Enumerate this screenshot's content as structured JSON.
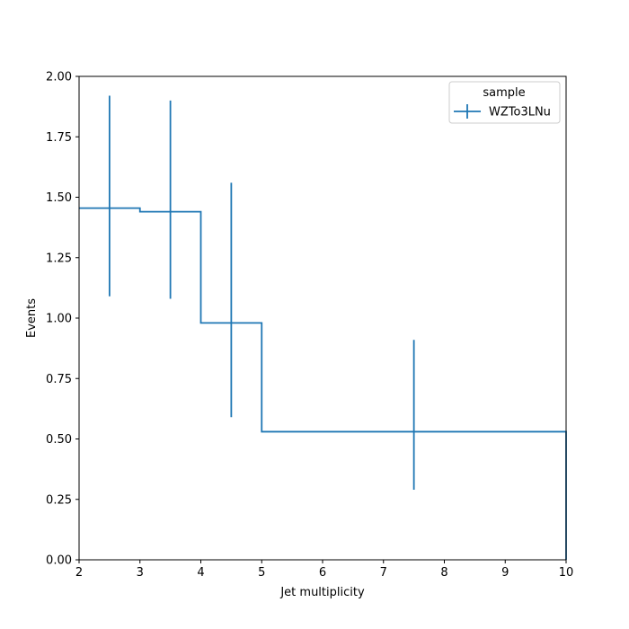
{
  "chart_data": {
    "type": "histogram-step",
    "xlabel": "Jet multiplicity",
    "ylabel": "Events",
    "xlim": [
      2,
      10
    ],
    "ylim": [
      0,
      2.0
    ],
    "xticks": [
      "2",
      "3",
      "4",
      "5",
      "6",
      "7",
      "8",
      "9",
      "10"
    ],
    "yticks": [
      "0.00",
      "0.25",
      "0.50",
      "0.75",
      "1.00",
      "1.25",
      "1.50",
      "1.75",
      "2.00"
    ],
    "grid": false,
    "legend": {
      "title": "sample",
      "placement": "top-right",
      "entries": [
        "WZTo3LNu"
      ]
    },
    "series": [
      {
        "name": "WZTo3LNu",
        "color": "#1f77b4",
        "bin_edges": [
          2,
          3,
          4,
          5,
          10
        ],
        "values": [
          1.455,
          1.44,
          0.98,
          0.53
        ],
        "errors_up": [
          1.92,
          1.9,
          1.56,
          0.91
        ],
        "errors_down": [
          1.09,
          1.08,
          0.59,
          0.29
        ]
      }
    ]
  }
}
